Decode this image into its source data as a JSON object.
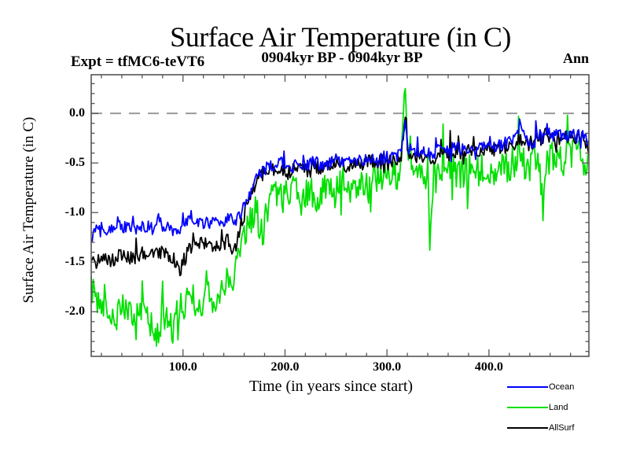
{
  "header": {
    "title": "Surface Air Temperature (in C)",
    "subtitle": "0904kyr BP - 0904kyr BP",
    "experiment_label": "Expt = tfMC6-teVT6",
    "period_label": "Ann"
  },
  "chart_data": {
    "type": "line",
    "title": "Surface Air Temperature (in C)",
    "subtitle": "0904kyr BP - 0904kyr BP",
    "annotations": {
      "top_left": "Expt = tfMC6-teVT6",
      "top_right": "Ann"
    },
    "xlabel": "Time (in years since start)",
    "ylabel": "Surface Air Temperature (in C)",
    "xlim": [
      10,
      498
    ],
    "ylim": [
      -2.45,
      0.39
    ],
    "grid": false,
    "frame_color": "#555555",
    "x_ticks": {
      "major": [
        {
          "value": 100,
          "label": "100.0"
        },
        {
          "value": 200,
          "label": "200.0"
        },
        {
          "value": 300,
          "label": "300.0"
        },
        {
          "value": 400,
          "label": "400.0"
        }
      ],
      "minor_step": 20
    },
    "y_ticks": {
      "major": [
        {
          "value": 0.0,
          "label": "0.0"
        },
        {
          "value": -0.5,
          "label": "-0.5"
        },
        {
          "value": -1.0,
          "label": "-1.0"
        },
        {
          "value": -1.5,
          "label": "-1.5"
        },
        {
          "value": -2.0,
          "label": "-2.0"
        }
      ],
      "minor_step": 0.1
    },
    "zero_line": {
      "value": 0.0,
      "style": "dashed",
      "color": "#999999"
    },
    "legend": {
      "position": "bottom-right",
      "entries": [
        {
          "label": "Ocean",
          "color": "#0000ff"
        },
        {
          "label": "Land",
          "color": "#00e000"
        },
        {
          "label": "AllSurf",
          "color": "#000000"
        }
      ]
    },
    "series": [
      {
        "name": "Land",
        "color": "#00e000",
        "noise_amp": 0.17,
        "anchors": [
          [
            10,
            -1.75
          ],
          [
            18,
            -1.95
          ],
          [
            26,
            -2.02
          ],
          [
            34,
            -2.1
          ],
          [
            42,
            -1.95
          ],
          [
            50,
            -2.05
          ],
          [
            58,
            -1.95
          ],
          [
            66,
            -2.12
          ],
          [
            74,
            -2.18
          ],
          [
            82,
            -2.05
          ],
          [
            90,
            -2.15
          ],
          [
            98,
            -1.95
          ],
          [
            106,
            -1.85
          ],
          [
            114,
            -1.92
          ],
          [
            122,
            -1.85
          ],
          [
            130,
            -1.9
          ],
          [
            138,
            -1.78
          ],
          [
            146,
            -1.7
          ],
          [
            154,
            -1.5
          ],
          [
            160,
            -1.3
          ],
          [
            166,
            -1.1
          ],
          [
            172,
            -0.98
          ],
          [
            178,
            -1.25
          ],
          [
            184,
            -0.9
          ],
          [
            192,
            -0.82
          ],
          [
            200,
            -0.85
          ],
          [
            208,
            -0.78
          ],
          [
            216,
            -0.88
          ],
          [
            224,
            -0.75
          ],
          [
            232,
            -0.85
          ],
          [
            240,
            -0.75
          ],
          [
            248,
            -0.8
          ],
          [
            256,
            -0.7
          ],
          [
            264,
            -0.75
          ],
          [
            272,
            -0.68
          ],
          [
            280,
            -0.72
          ],
          [
            288,
            -0.65
          ],
          [
            296,
            -0.62
          ],
          [
            304,
            -0.65
          ],
          [
            310,
            -0.6
          ],
          [
            314,
            -0.5
          ],
          [
            317,
            0.05
          ],
          [
            318,
            0.33
          ],
          [
            320,
            -0.25
          ],
          [
            324,
            -0.62
          ],
          [
            332,
            -0.68
          ],
          [
            340,
            -0.6
          ],
          [
            342,
            -1.05
          ],
          [
            346,
            -0.65
          ],
          [
            354,
            -0.58
          ],
          [
            362,
            -0.55
          ],
          [
            370,
            -0.62
          ],
          [
            378,
            -0.55
          ],
          [
            386,
            -0.6
          ],
          [
            394,
            -0.52
          ],
          [
            402,
            -0.58
          ],
          [
            410,
            -0.52
          ],
          [
            418,
            -0.56
          ],
          [
            426,
            -0.48
          ],
          [
            434,
            -0.52
          ],
          [
            442,
            -0.45
          ],
          [
            450,
            -0.5
          ],
          [
            453,
            -0.95
          ],
          [
            458,
            -0.45
          ],
          [
            466,
            -0.4
          ],
          [
            474,
            -0.48
          ],
          [
            482,
            -0.38
          ],
          [
            490,
            -0.45
          ],
          [
            498,
            -0.58
          ]
        ]
      },
      {
        "name": "AllSurf",
        "color": "#000000",
        "noise_amp": 0.075,
        "anchors": [
          [
            10,
            -1.52
          ],
          [
            20,
            -1.46
          ],
          [
            30,
            -1.48
          ],
          [
            40,
            -1.43
          ],
          [
            50,
            -1.46
          ],
          [
            60,
            -1.41
          ],
          [
            70,
            -1.44
          ],
          [
            80,
            -1.4
          ],
          [
            90,
            -1.45
          ],
          [
            97,
            -1.6
          ],
          [
            104,
            -1.4
          ],
          [
            112,
            -1.33
          ],
          [
            120,
            -1.3
          ],
          [
            128,
            -1.33
          ],
          [
            136,
            -1.36
          ],
          [
            144,
            -1.28
          ],
          [
            150,
            -1.4
          ],
          [
            156,
            -1.15
          ],
          [
            162,
            -0.95
          ],
          [
            168,
            -0.8
          ],
          [
            174,
            -0.68
          ],
          [
            180,
            -0.6
          ],
          [
            188,
            -0.58
          ],
          [
            196,
            -0.55
          ],
          [
            204,
            -0.6
          ],
          [
            212,
            -0.55
          ],
          [
            220,
            -0.58
          ],
          [
            228,
            -0.52
          ],
          [
            236,
            -0.56
          ],
          [
            244,
            -0.53
          ],
          [
            252,
            -0.5
          ],
          [
            260,
            -0.53
          ],
          [
            268,
            -0.48
          ],
          [
            276,
            -0.52
          ],
          [
            284,
            -0.47
          ],
          [
            292,
            -0.5
          ],
          [
            300,
            -0.46
          ],
          [
            308,
            -0.47
          ],
          [
            314,
            -0.42
          ],
          [
            318,
            -0.1
          ],
          [
            321,
            -0.4
          ],
          [
            328,
            -0.45
          ],
          [
            336,
            -0.42
          ],
          [
            344,
            -0.45
          ],
          [
            352,
            -0.4
          ],
          [
            360,
            -0.41
          ],
          [
            368,
            -0.37
          ],
          [
            376,
            -0.4
          ],
          [
            384,
            -0.36
          ],
          [
            392,
            -0.38
          ],
          [
            400,
            -0.35
          ],
          [
            408,
            -0.37
          ],
          [
            416,
            -0.33
          ],
          [
            424,
            -0.3
          ],
          [
            432,
            -0.26
          ],
          [
            440,
            -0.31
          ],
          [
            448,
            -0.27
          ],
          [
            456,
            -0.22
          ],
          [
            464,
            -0.27
          ],
          [
            472,
            -0.24
          ],
          [
            480,
            -0.26
          ],
          [
            488,
            -0.23
          ],
          [
            498,
            -0.34
          ]
        ]
      },
      {
        "name": "Ocean",
        "color": "#0000ff",
        "noise_amp": 0.065,
        "anchors": [
          [
            10,
            -1.22
          ],
          [
            20,
            -1.16
          ],
          [
            30,
            -1.18
          ],
          [
            40,
            -1.14
          ],
          [
            50,
            -1.17
          ],
          [
            60,
            -1.13
          ],
          [
            70,
            -1.16
          ],
          [
            75,
            -1.04
          ],
          [
            80,
            -1.14
          ],
          [
            90,
            -1.18
          ],
          [
            100,
            -1.13
          ],
          [
            108,
            -1.03
          ],
          [
            115,
            -1.12
          ],
          [
            125,
            -1.1
          ],
          [
            135,
            -1.12
          ],
          [
            145,
            -1.06
          ],
          [
            152,
            -1.1
          ],
          [
            158,
            -0.95
          ],
          [
            164,
            -0.82
          ],
          [
            170,
            -0.7
          ],
          [
            176,
            -0.6
          ],
          [
            182,
            -0.55
          ],
          [
            190,
            -0.53
          ],
          [
            198,
            -0.5
          ],
          [
            205,
            -0.56
          ],
          [
            212,
            -0.5
          ],
          [
            220,
            -0.55
          ],
          [
            228,
            -0.48
          ],
          [
            236,
            -0.53
          ],
          [
            244,
            -0.5
          ],
          [
            252,
            -0.46
          ],
          [
            260,
            -0.5
          ],
          [
            268,
            -0.45
          ],
          [
            276,
            -0.49
          ],
          [
            284,
            -0.44
          ],
          [
            292,
            -0.47
          ],
          [
            300,
            -0.43
          ],
          [
            308,
            -0.45
          ],
          [
            314,
            -0.38
          ],
          [
            318,
            -0.08
          ],
          [
            321,
            -0.35
          ],
          [
            328,
            -0.42
          ],
          [
            336,
            -0.38
          ],
          [
            344,
            -0.42
          ],
          [
            352,
            -0.36
          ],
          [
            360,
            -0.38
          ],
          [
            368,
            -0.33
          ],
          [
            376,
            -0.37
          ],
          [
            384,
            -0.33
          ],
          [
            392,
            -0.36
          ],
          [
            400,
            -0.32
          ],
          [
            408,
            -0.34
          ],
          [
            416,
            -0.3
          ],
          [
            424,
            -0.25
          ],
          [
            430,
            -0.12
          ],
          [
            436,
            -0.28
          ],
          [
            444,
            -0.3
          ],
          [
            450,
            -0.22
          ],
          [
            456,
            -0.14
          ],
          [
            462,
            -0.25
          ],
          [
            468,
            -0.2
          ],
          [
            474,
            -0.26
          ],
          [
            480,
            -0.2
          ],
          [
            486,
            -0.24
          ],
          [
            492,
            -0.2
          ],
          [
            498,
            -0.32
          ]
        ]
      }
    ]
  }
}
